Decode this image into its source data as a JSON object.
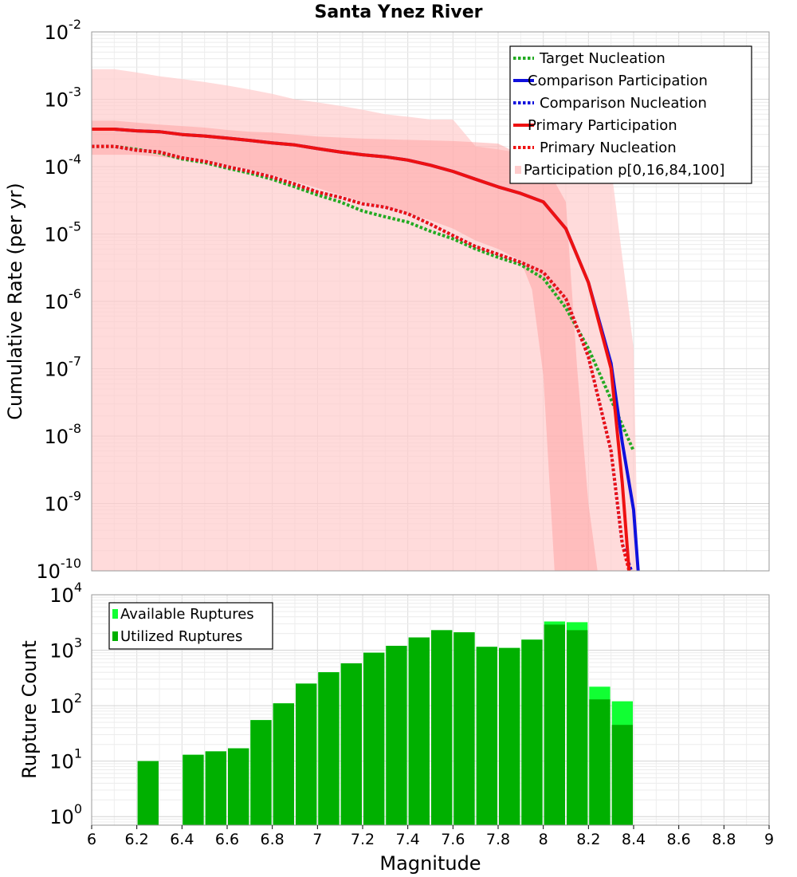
{
  "chart_data": [
    {
      "type": "line",
      "title": "Santa Ynez River",
      "xlabel": "",
      "ylabel": "Cumulative Rate (per yr)",
      "xlim": [
        6,
        9
      ],
      "ylim": [
        1e-10,
        0.01
      ],
      "y_scale": "log",
      "grid": true,
      "legend_position": "top-right",
      "y_tick_exponents": [
        "-10",
        "-9",
        "-8",
        "-7",
        "-6",
        "-5",
        "-4",
        "-3",
        "-2"
      ],
      "series": [
        {
          "name": "Target Nucleation",
          "style": "dotted",
          "color": "#22aa22",
          "x": [
            6.0,
            6.1,
            6.2,
            6.3,
            6.4,
            6.5,
            6.6,
            6.7,
            6.8,
            6.9,
            7.0,
            7.1,
            7.2,
            7.3,
            7.4,
            7.5,
            7.6,
            7.7,
            7.8,
            7.9,
            8.0,
            8.1,
            8.2,
            8.3,
            8.4
          ],
          "y": [
            0.0002,
            0.0002,
            0.00018,
            0.00016,
            0.00013,
            0.000115,
            9.5e-05,
            8e-05,
            6.5e-05,
            5e-05,
            3.8e-05,
            3e-05,
            2.2e-05,
            1.8e-05,
            1.5e-05,
            1.1e-05,
            8.5e-06,
            6e-06,
            4.5e-06,
            3.5e-06,
            2.2e-06,
            8e-07,
            2e-07,
            3.5e-08,
            6e-09
          ]
        },
        {
          "name": "Comparison Participation",
          "style": "solid",
          "color": "#1010dd",
          "x": [
            6.0,
            6.1,
            6.2,
            6.3,
            6.4,
            6.5,
            6.6,
            6.7,
            6.8,
            6.9,
            7.0,
            7.1,
            7.2,
            7.3,
            7.4,
            7.5,
            7.6,
            7.7,
            7.8,
            7.9,
            8.0,
            8.1,
            8.2,
            8.3,
            8.35,
            8.4,
            8.42
          ],
          "y": [
            0.00036,
            0.00036,
            0.00034,
            0.00033,
            0.0003,
            0.000285,
            0.000265,
            0.000245,
            0.000225,
            0.00021,
            0.000185,
            0.000165,
            0.00015,
            0.00014,
            0.000125,
            0.000105,
            8.5e-05,
            6.5e-05,
            5e-05,
            4e-05,
            3e-05,
            1.2e-05,
            1.9e-06,
            1.2e-07,
            8e-09,
            8e-10,
            1e-10
          ]
        },
        {
          "name": "Comparison Nucleation",
          "style": "dotted",
          "color": "#1010dd",
          "x": [
            6.0,
            6.1,
            6.2,
            6.3,
            6.4,
            6.5,
            6.6,
            6.7,
            6.8,
            6.9,
            7.0,
            7.1,
            7.2,
            7.3,
            7.4,
            7.5,
            7.6,
            7.7,
            7.8,
            7.9,
            8.0,
            8.1,
            8.2,
            8.3,
            8.35,
            8.39
          ],
          "y": [
            0.0002,
            0.0002,
            0.000175,
            0.000165,
            0.000135,
            0.00012,
            0.0001,
            8.5e-05,
            7e-05,
            5.5e-05,
            4.2e-05,
            3.5e-05,
            2.8e-05,
            2.5e-05,
            2e-05,
            1.4e-05,
            9.5e-06,
            6.5e-06,
            5e-06,
            3.8e-06,
            2.7e-06,
            1.1e-06,
            1.5e-07,
            6e-09,
            2.5e-10,
            1e-10
          ]
        },
        {
          "name": "Primary Participation",
          "style": "solid",
          "color": "#ee1111",
          "x": [
            6.0,
            6.1,
            6.2,
            6.3,
            6.4,
            6.5,
            6.6,
            6.7,
            6.8,
            6.9,
            7.0,
            7.1,
            7.2,
            7.3,
            7.4,
            7.5,
            7.6,
            7.7,
            7.8,
            7.9,
            8.0,
            8.1,
            8.2,
            8.3,
            8.35,
            8.38
          ],
          "y": [
            0.00036,
            0.00036,
            0.00034,
            0.00033,
            0.0003,
            0.000285,
            0.000265,
            0.000245,
            0.000225,
            0.00021,
            0.000185,
            0.000165,
            0.00015,
            0.00014,
            0.000125,
            0.000105,
            8.5e-05,
            6.5e-05,
            5e-05,
            4e-05,
            3e-05,
            1.2e-05,
            1.9e-06,
            1e-07,
            2e-09,
            1e-10
          ]
        },
        {
          "name": "Primary Nucleation",
          "style": "dotted",
          "color": "#ee1111",
          "x": [
            6.0,
            6.1,
            6.2,
            6.3,
            6.4,
            6.5,
            6.6,
            6.7,
            6.8,
            6.9,
            7.0,
            7.1,
            7.2,
            7.3,
            7.4,
            7.5,
            7.6,
            7.7,
            7.8,
            7.9,
            8.0,
            8.1,
            8.2,
            8.3,
            8.35,
            8.38
          ],
          "y": [
            0.0002,
            0.0002,
            0.000175,
            0.000165,
            0.000135,
            0.00012,
            0.0001,
            8.5e-05,
            7e-05,
            5.5e-05,
            4.2e-05,
            3.5e-05,
            2.8e-05,
            2.5e-05,
            2e-05,
            1.4e-05,
            9.5e-06,
            6.5e-06,
            5e-06,
            3.8e-06,
            2.7e-06,
            1.1e-06,
            1.5e-07,
            6e-09,
            2.5e-10,
            1e-10
          ]
        }
      ],
      "bands": [
        {
          "name": "Participation p[0,16,84,100]",
          "range": "p0-p100",
          "color": "#ffcccc",
          "opacity": 0.7,
          "x": [
            6.0,
            6.1,
            6.2,
            6.3,
            6.4,
            6.5,
            6.6,
            6.7,
            6.8,
            6.9,
            7.0,
            7.1,
            7.2,
            7.3,
            7.4,
            7.5,
            7.6,
            7.7,
            7.8,
            7.9,
            8.0,
            8.1,
            8.2,
            8.3,
            8.4,
            8.42
          ],
          "upper": [
            0.0028,
            0.0028,
            0.0025,
            0.0022,
            0.002,
            0.0018,
            0.0016,
            0.0014,
            0.0012,
            0.001,
            0.0009,
            0.0008,
            0.0007,
            0.0006,
            0.00055,
            0.0005,
            0.0005,
            0.0002,
            0.00018,
            0.00016,
            0.00015,
            0.00013,
            0.00011,
            0.0001,
            2e-07,
            1e-10
          ],
          "lower": [
            1e-10,
            1e-10,
            1e-10,
            1e-10,
            1e-10,
            1e-10,
            1e-10,
            1e-10,
            1e-10,
            1e-10,
            1e-10,
            1e-10,
            1e-10,
            1e-10,
            1e-10,
            1e-10,
            1e-10,
            1e-10,
            1e-10,
            1e-10,
            1e-10,
            1e-10,
            1e-10,
            1e-10,
            1e-10,
            1e-10
          ]
        },
        {
          "name": "",
          "range": "p16-p84",
          "color": "#ff9999",
          "opacity": 0.45,
          "x": [
            6.0,
            6.1,
            6.2,
            6.3,
            6.4,
            6.5,
            6.6,
            6.7,
            6.8,
            6.9,
            7.0,
            7.1,
            7.2,
            7.3,
            7.4,
            7.5,
            7.6,
            7.7,
            7.8,
            7.9,
            7.95,
            8.0,
            8.05,
            8.1,
            8.15,
            8.2,
            8.24
          ],
          "upper": [
            0.00048,
            0.00048,
            0.00045,
            0.00042,
            0.0004,
            0.00038,
            0.00035,
            0.00033,
            0.00032,
            0.0003,
            0.00028,
            0.00027,
            0.00026,
            0.000255,
            0.00025,
            0.000245,
            0.00024,
            0.00023,
            0.00022,
            0.00015,
            0.0001,
            8e-05,
            6e-05,
            3e-05,
            1e-07,
            1e-09,
            1e-10
          ],
          "lower": [
            0.00015,
            0.00015,
            0.00015,
            0.00014,
            0.00013,
            0.00012,
            0.000105,
            9e-05,
            7.5e-05,
            6e-05,
            4.8e-05,
            3.8e-05,
            3e-05,
            2.5e-05,
            2e-05,
            1.6e-05,
            1.2e-05,
            8e-06,
            6e-06,
            4e-06,
            1.5e-06,
            8e-08,
            1e-10,
            1e-10,
            1e-10,
            1e-10,
            1e-10
          ]
        }
      ]
    },
    {
      "type": "bar",
      "title": "",
      "xlabel": "Magnitude",
      "ylabel": "Rupture Count",
      "xlim": [
        6,
        9
      ],
      "ylim": [
        0.7,
        10000
      ],
      "y_scale": "log",
      "grid": true,
      "legend_position": "top-left",
      "x_ticks": [
        "6",
        "6.2",
        "6.4",
        "6.6",
        "6.8",
        "7",
        "7.2",
        "7.4",
        "7.6",
        "7.8",
        "8",
        "8.2",
        "8.4",
        "8.6",
        "8.8",
        "9"
      ],
      "y_tick_exponents": [
        "0",
        "1",
        "2",
        "3",
        "4"
      ],
      "bin_width": 0.1,
      "bins": [
        6.25,
        6.45,
        6.55,
        6.65,
        6.75,
        6.85,
        6.95,
        7.05,
        7.15,
        7.25,
        7.35,
        7.45,
        7.55,
        7.65,
        7.75,
        7.85,
        7.95,
        8.05,
        8.15,
        8.25,
        8.35
      ],
      "series": [
        {
          "name": "Available Ruptures",
          "color": "#11ff33",
          "values": [
            10,
            13,
            15,
            17,
            55,
            110,
            250,
            400,
            580,
            900,
            1200,
            1700,
            2300,
            2100,
            1150,
            1100,
            1550,
            3300,
            3200,
            220,
            120
          ]
        },
        {
          "name": "Utilized Ruptures",
          "color": "#00b000",
          "values": [
            10,
            13,
            15,
            17,
            55,
            110,
            250,
            400,
            580,
            900,
            1200,
            1700,
            2300,
            2100,
            1150,
            1100,
            1550,
            2900,
            2300,
            130,
            45
          ]
        }
      ]
    }
  ]
}
